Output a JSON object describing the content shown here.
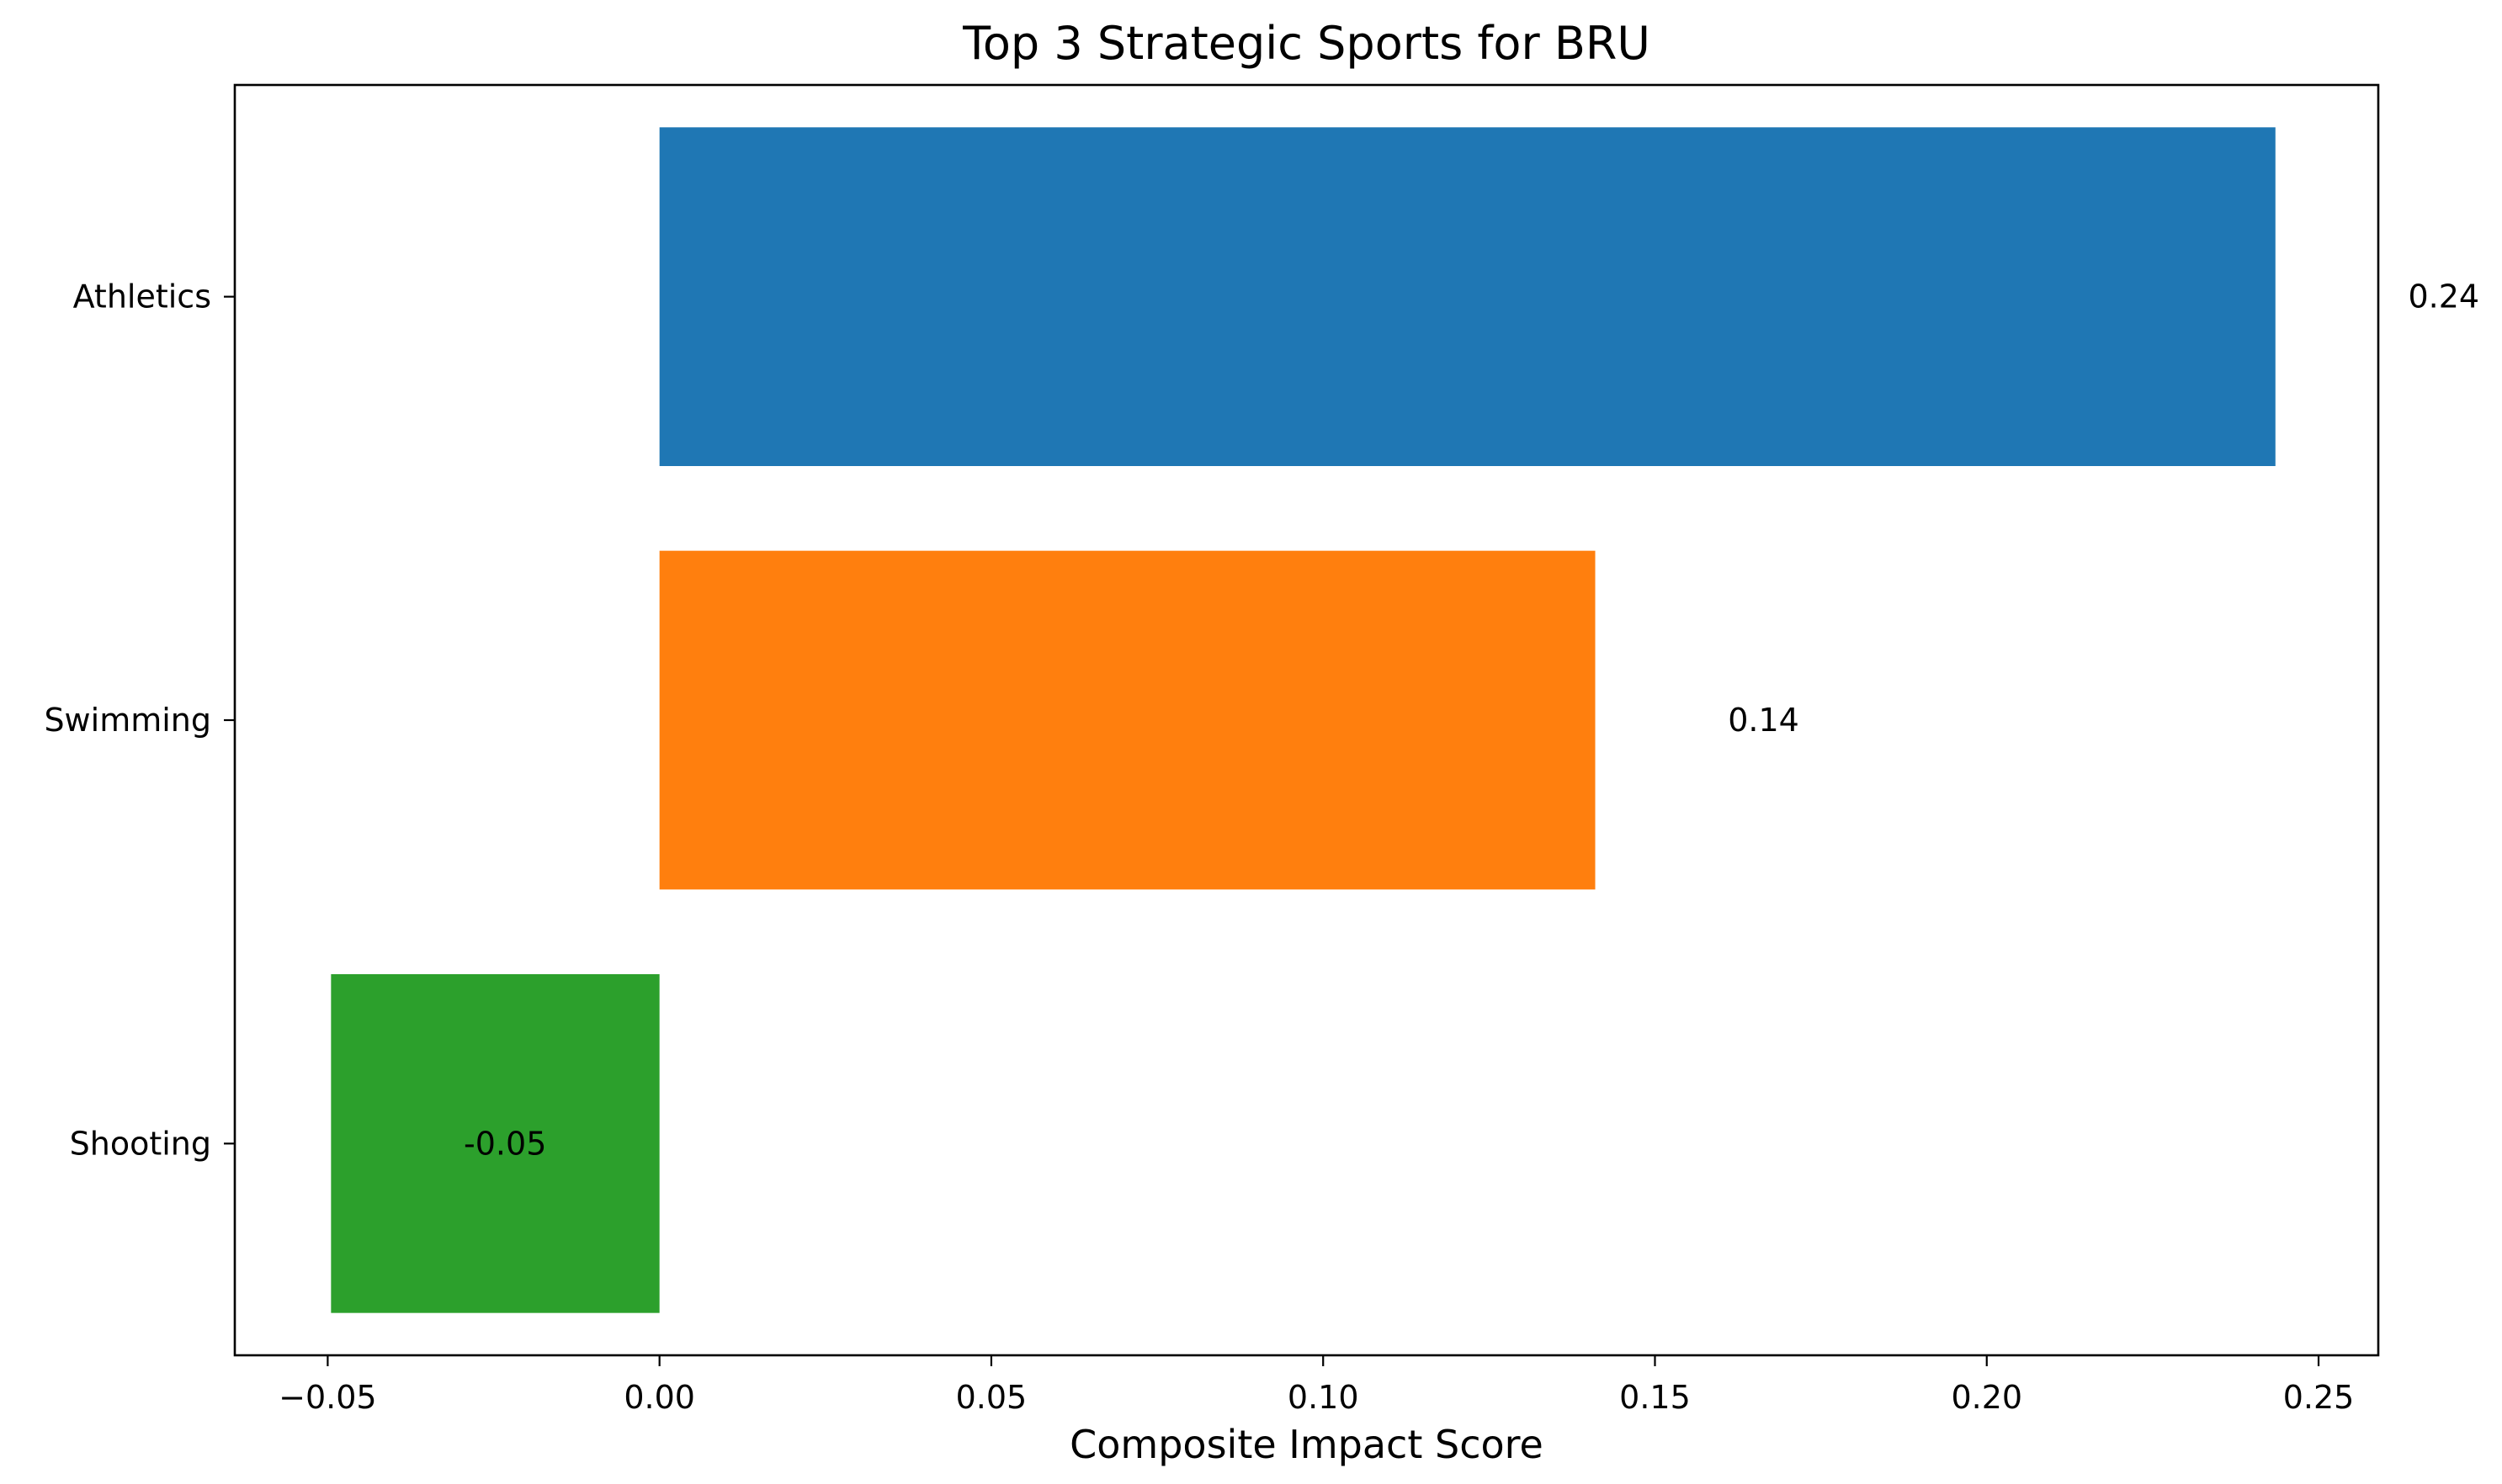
{
  "chart_data": {
    "type": "bar",
    "orientation": "horizontal",
    "title": "Top 3 Strategic Sports for BRU",
    "xlabel": "Composite Impact Score",
    "ylabel": "",
    "categories": [
      "Athletics",
      "Swimming",
      "Shooting"
    ],
    "values": [
      0.2435,
      0.141,
      -0.0495
    ],
    "data_labels": [
      "0.24",
      "0.14",
      "-0.05"
    ],
    "colors": [
      "#1f77b4",
      "#ff7f0e",
      "#2ca02c"
    ],
    "xlim": [
      -0.064,
      0.259
    ],
    "xticks": [
      -0.05,
      0.0,
      0.05,
      0.1,
      0.15,
      0.2,
      0.25
    ],
    "xtick_labels": [
      "−0.05",
      "0.00",
      "0.05",
      "0.10",
      "0.15",
      "0.20",
      "0.25"
    ],
    "grid": false,
    "legend": "none"
  }
}
